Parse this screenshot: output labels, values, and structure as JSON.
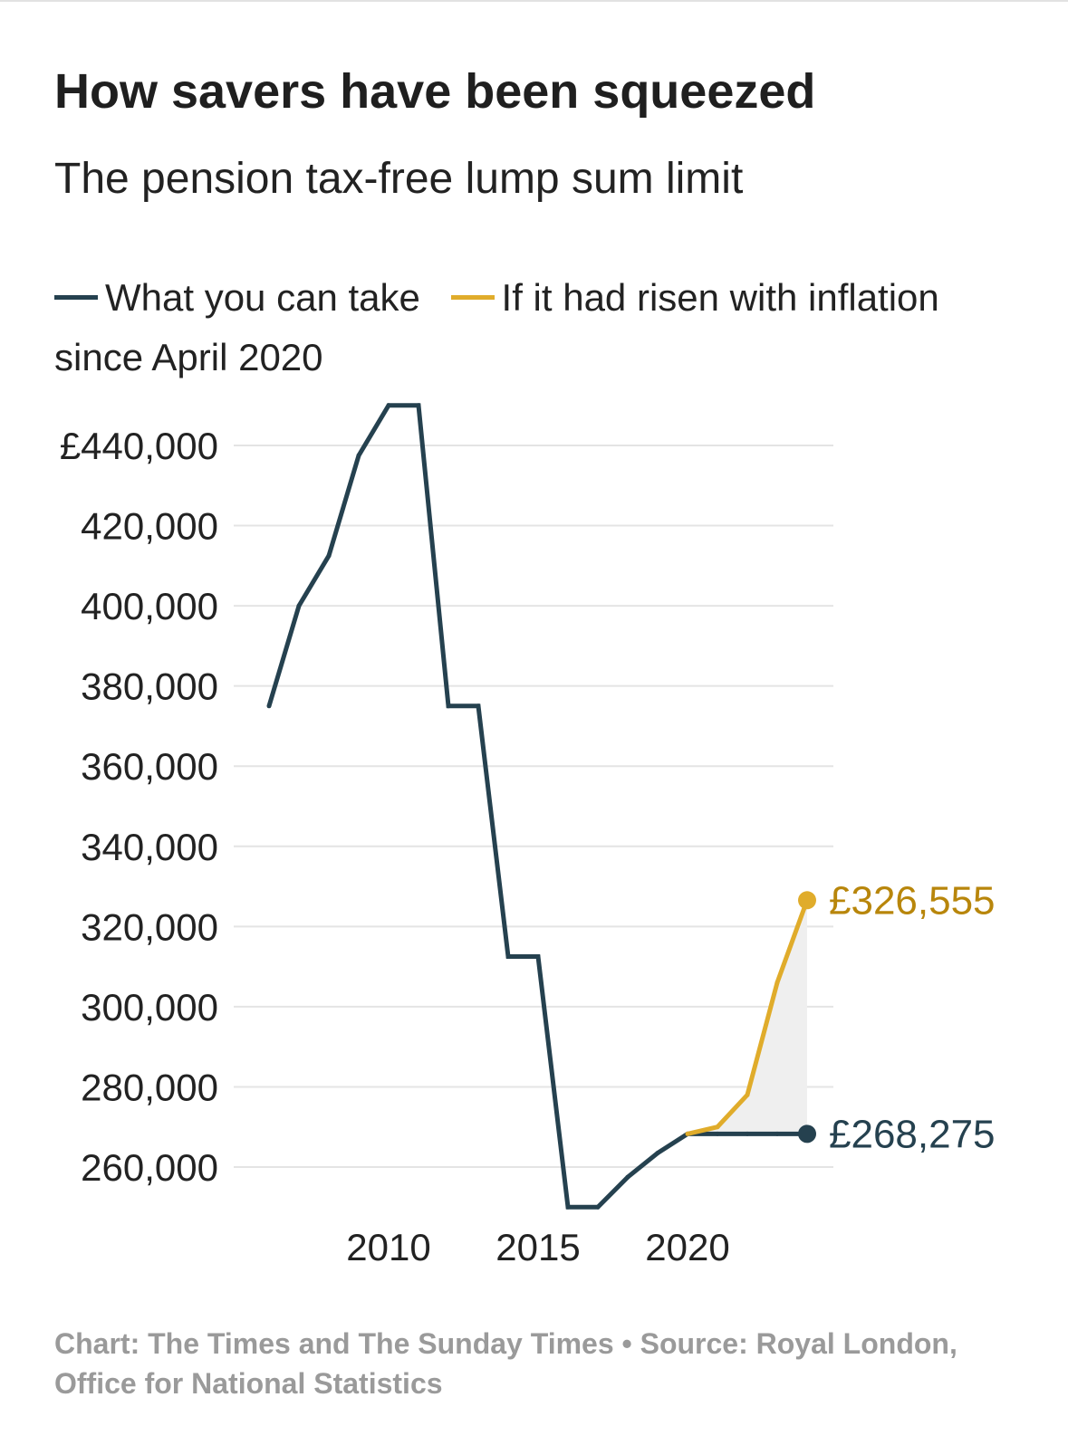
{
  "title": "How savers have been squeezed",
  "subtitle": "The pension tax-free lump sum limit",
  "legend": [
    {
      "label": "What you can take",
      "color": "#25414f"
    },
    {
      "label": "If it had risen with inflation since April 2020",
      "color": "#e0ac2b"
    }
  ],
  "footer": {
    "credit": "Chart: The Times and The Sunday Times",
    "separator": "•",
    "source": "Source: Royal London, Office for National Statistics"
  },
  "chart_data": {
    "type": "line",
    "title": "How savers have been squeezed",
    "subtitle": "The pension tax-free lump sum limit",
    "xlabel": "",
    "ylabel": "",
    "xlim": [
      2006.3,
      2025.2
    ],
    "ylim": [
      249000,
      452000
    ],
    "y_ticks": [
      260000,
      280000,
      300000,
      320000,
      340000,
      360000,
      380000,
      400000,
      420000,
      440000
    ],
    "y_tick_labels": [
      "260,000",
      "280,000",
      "300,000",
      "320,000",
      "340,000",
      "360,000",
      "380,000",
      "400,000",
      "420,000",
      "440,000"
    ],
    "y_top_label": "£440,000",
    "x_ticks": [
      2010,
      2015,
      2020
    ],
    "x_tick_labels": [
      "2010",
      "2015",
      "2020"
    ],
    "grid": true,
    "series": [
      {
        "name": "What you can take",
        "color": "#25414f",
        "end_label": "£268,275",
        "points": [
          [
            2006.25,
            375000
          ],
          [
            2007.25,
            400000
          ],
          [
            2008.25,
            412500
          ],
          [
            2009.25,
            437500
          ],
          [
            2010.25,
            450000
          ],
          [
            2011.25,
            450000
          ],
          [
            2012.25,
            375000
          ],
          [
            2013.25,
            375000
          ],
          [
            2014.25,
            312500
          ],
          [
            2015.25,
            312500
          ],
          [
            2016.25,
            250000
          ],
          [
            2017.25,
            250000
          ],
          [
            2018.25,
            257500
          ],
          [
            2019.25,
            263500
          ],
          [
            2020.25,
            268275
          ],
          [
            2021.25,
            268275
          ],
          [
            2022.25,
            268275
          ],
          [
            2023.25,
            268275
          ],
          [
            2024.25,
            268275
          ]
        ]
      },
      {
        "name": "If it had risen with inflation since April 2020",
        "color": "#e0ac2b",
        "end_label": "£326,555",
        "points": [
          [
            2020.25,
            268275
          ],
          [
            2021.25,
            270000
          ],
          [
            2022.25,
            278000
          ],
          [
            2023.25,
            306000
          ],
          [
            2024.25,
            326555
          ]
        ]
      }
    ],
    "shaded_gap": {
      "between": [
        "If it had risen with inflation since April 2020",
        "What you can take"
      ],
      "color": "#efefef"
    },
    "end_label_colors": {
      "What you can take": "#25414f",
      "If it had risen with inflation since April 2020": "#b8860b"
    }
  }
}
